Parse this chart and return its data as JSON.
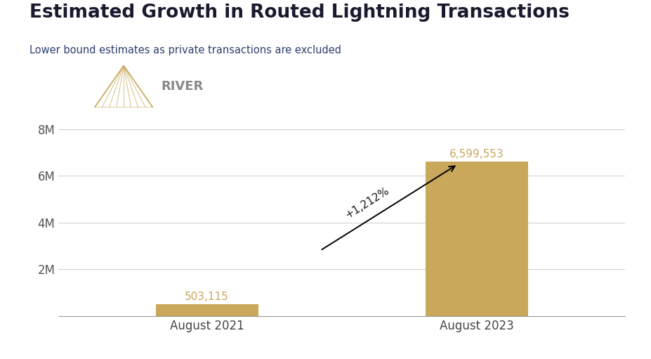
{
  "title": "Estimated Growth in Routed Lightning Transactions",
  "subtitle": "Lower bound estimates as private transactions are excluded",
  "categories": [
    "August 2021",
    "August 2023"
  ],
  "values": [
    503115,
    6599553
  ],
  "bar_color": "#C9A85C",
  "bar_labels": [
    "503,115",
    "6,599,553"
  ],
  "annotation_text": "+1,212%",
  "ylim": [
    0,
    8000000
  ],
  "yticks": [
    2000000,
    4000000,
    6000000,
    8000000
  ],
  "ytick_labels": [
    "2M",
    "4M",
    "6M",
    "8M"
  ],
  "background_color": "#ffffff",
  "title_color": "#1a1a2e",
  "subtitle_color": "#2e4070",
  "bar_label_color": "#C9A85C",
  "annotation_color": "#1a1a1a",
  "grid_color": "#cccccc",
  "logo_color": "#C9A85C",
  "logo_text_color": "#888888"
}
